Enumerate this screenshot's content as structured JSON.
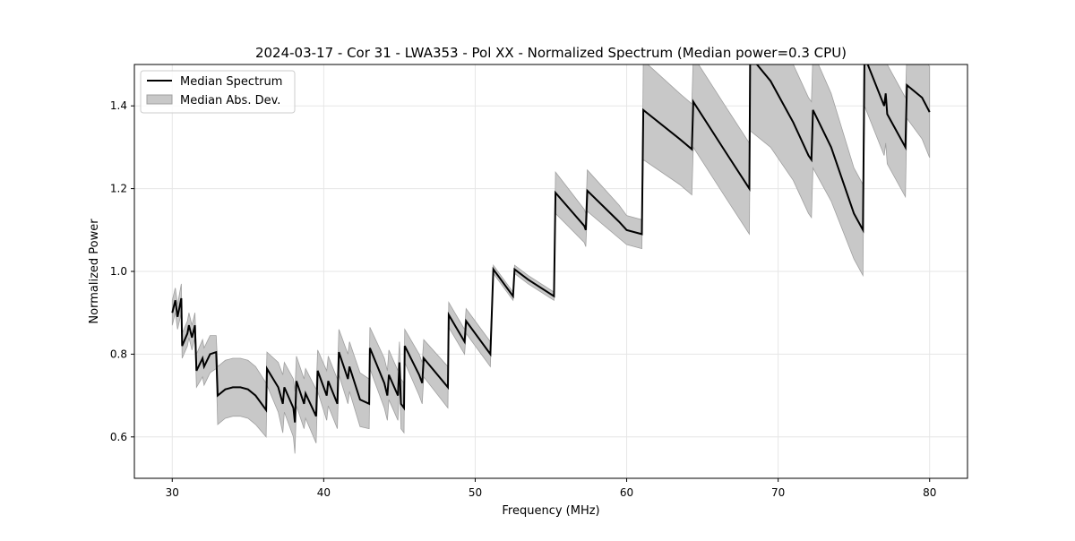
{
  "chart_data": {
    "type": "line",
    "title": "2024-03-17 - Cor 31 - LWA353 - Pol XX - Normalized Spectrum (Median power=0.3 CPU)",
    "xlabel": "Frequency (MHz)",
    "ylabel": "Normalized Power",
    "xlim": [
      27.5,
      82.5
    ],
    "ylim": [
      0.5,
      1.5
    ],
    "xticks": [
      30,
      40,
      50,
      60,
      70,
      80
    ],
    "yticks": [
      0.6,
      0.8,
      1.0,
      1.2,
      1.4
    ],
    "xtick_labels": [
      "30",
      "40",
      "50",
      "60",
      "70",
      "80"
    ],
    "ytick_labels": [
      "0.6",
      "0.8",
      "1.0",
      "1.2",
      "1.4"
    ],
    "grid": true,
    "legend": {
      "placement": "top-left",
      "entries": [
        "Median Spectrum",
        "Median Abs. Dev."
      ]
    },
    "colors": {
      "line": "#000000",
      "band": "#c8c8c8",
      "band_edge": "#a0a0a0"
    },
    "series_columns": [
      "frequency_mhz",
      "median",
      "abs_dev"
    ],
    "series": [
      [
        30.0,
        0.9,
        0.03
      ],
      [
        30.2,
        0.93,
        0.03
      ],
      [
        30.35,
        0.89,
        0.03
      ],
      [
        30.6,
        0.935,
        0.035
      ],
      [
        30.65,
        0.82,
        0.03
      ],
      [
        31.0,
        0.85,
        0.03
      ],
      [
        31.1,
        0.87,
        0.03
      ],
      [
        31.3,
        0.84,
        0.03
      ],
      [
        31.5,
        0.87,
        0.03
      ],
      [
        31.6,
        0.76,
        0.04
      ],
      [
        32.0,
        0.79,
        0.045
      ],
      [
        32.1,
        0.77,
        0.045
      ],
      [
        32.5,
        0.8,
        0.045
      ],
      [
        32.9,
        0.805,
        0.04
      ],
      [
        33.0,
        0.7,
        0.07
      ],
      [
        33.5,
        0.715,
        0.07
      ],
      [
        34.0,
        0.72,
        0.07
      ],
      [
        34.5,
        0.72,
        0.07
      ],
      [
        35.0,
        0.715,
        0.07
      ],
      [
        35.5,
        0.7,
        0.07
      ],
      [
        36.2,
        0.665,
        0.065
      ],
      [
        36.25,
        0.765,
        0.04
      ],
      [
        37.0,
        0.72,
        0.06
      ],
      [
        37.3,
        0.68,
        0.07
      ],
      [
        37.4,
        0.72,
        0.06
      ],
      [
        38.0,
        0.67,
        0.07
      ],
      [
        38.1,
        0.635,
        0.075
      ],
      [
        38.2,
        0.735,
        0.06
      ],
      [
        38.7,
        0.68,
        0.06
      ],
      [
        38.8,
        0.705,
        0.06
      ],
      [
        39.5,
        0.65,
        0.065
      ],
      [
        39.6,
        0.76,
        0.05
      ],
      [
        40.2,
        0.7,
        0.06
      ],
      [
        40.3,
        0.735,
        0.06
      ],
      [
        40.9,
        0.68,
        0.06
      ],
      [
        41.0,
        0.805,
        0.055
      ],
      [
        41.6,
        0.74,
        0.06
      ],
      [
        41.7,
        0.77,
        0.06
      ],
      [
        42.4,
        0.69,
        0.065
      ],
      [
        43.0,
        0.68,
        0.06
      ],
      [
        43.05,
        0.815,
        0.05
      ],
      [
        44.0,
        0.73,
        0.06
      ],
      [
        44.2,
        0.7,
        0.06
      ],
      [
        44.3,
        0.75,
        0.06
      ],
      [
        44.9,
        0.7,
        0.06
      ],
      [
        45.0,
        0.78,
        0.05
      ],
      [
        45.1,
        0.68,
        0.06
      ],
      [
        45.3,
        0.67,
        0.06
      ],
      [
        45.35,
        0.82,
        0.04
      ],
      [
        46.3,
        0.75,
        0.05
      ],
      [
        46.5,
        0.73,
        0.05
      ],
      [
        46.6,
        0.79,
        0.045
      ],
      [
        48.2,
        0.72,
        0.05
      ],
      [
        48.25,
        0.895,
        0.03
      ],
      [
        49.3,
        0.83,
        0.03
      ],
      [
        49.4,
        0.88,
        0.03
      ],
      [
        51.0,
        0.8,
        0.03
      ],
      [
        51.2,
        1.005,
        0.01
      ],
      [
        52.5,
        0.94,
        0.01
      ],
      [
        52.6,
        1.005,
        0.01
      ],
      [
        53.5,
        0.98,
        0.01
      ],
      [
        55.2,
        0.94,
        0.01
      ],
      [
        55.3,
        1.19,
        0.05
      ],
      [
        57.2,
        1.11,
        0.04
      ],
      [
        57.3,
        1.1,
        0.04
      ],
      [
        57.4,
        1.195,
        0.05
      ],
      [
        59.5,
        1.12,
        0.04
      ],
      [
        60.0,
        1.1,
        0.035
      ],
      [
        61.0,
        1.09,
        0.035
      ],
      [
        61.1,
        1.39,
        0.12
      ],
      [
        63.5,
        1.32,
        0.11
      ],
      [
        64.3,
        1.295,
        0.11
      ],
      [
        64.4,
        1.41,
        0.11
      ],
      [
        66.5,
        1.29,
        0.11
      ],
      [
        68.1,
        1.2,
        0.11
      ],
      [
        68.15,
        1.52,
        0.18
      ],
      [
        69.5,
        1.46,
        0.16
      ],
      [
        71.0,
        1.36,
        0.14
      ],
      [
        72.0,
        1.28,
        0.14
      ],
      [
        72.2,
        1.27,
        0.14
      ],
      [
        72.3,
        1.39,
        0.14
      ],
      [
        73.5,
        1.3,
        0.13
      ],
      [
        75.0,
        1.14,
        0.11
      ],
      [
        75.6,
        1.1,
        0.11
      ],
      [
        75.7,
        1.52,
        0.12
      ],
      [
        77.0,
        1.4,
        0.12
      ],
      [
        77.1,
        1.43,
        0.12
      ],
      [
        77.2,
        1.38,
        0.12
      ],
      [
        78.4,
        1.3,
        0.12
      ],
      [
        78.5,
        1.45,
        0.08
      ],
      [
        79.5,
        1.42,
        0.1
      ],
      [
        80.0,
        1.385,
        0.11
      ]
    ]
  }
}
